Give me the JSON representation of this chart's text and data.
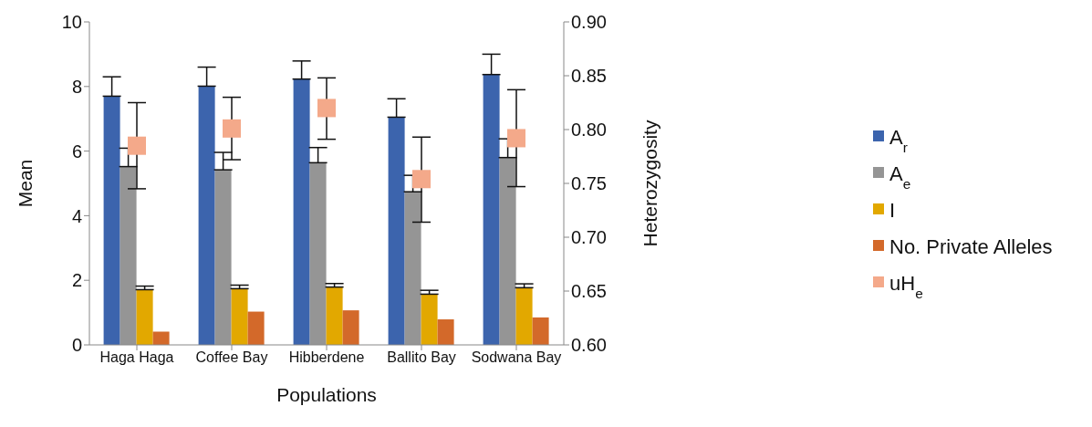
{
  "chart_data": {
    "type": "bar",
    "xlabel": "Populations",
    "ylabel": "Mean",
    "y2label": "Heterozygosity",
    "categories": [
      "Haga Haga",
      "Coffee Bay",
      "Hibberdene",
      "Ballito Bay",
      "Sodwana Bay"
    ],
    "series": [
      {
        "name": "A$_{r}$",
        "color": "#3c64ad",
        "values": [
          7.7,
          8.01,
          8.23,
          7.05,
          8.37
        ],
        "errors": [
          [
            7.7,
            8.3
          ],
          [
            8.01,
            8.6
          ],
          [
            8.23,
            8.79
          ],
          [
            7.05,
            7.62
          ],
          [
            8.37,
            9.0
          ]
        ]
      },
      {
        "name": "A$_{e}$",
        "color": "#959595",
        "values": [
          5.52,
          5.42,
          5.64,
          4.74,
          5.8
        ],
        "errors": [
          [
            5.52,
            6.09
          ],
          [
            5.42,
            5.96
          ],
          [
            5.64,
            6.11
          ],
          [
            4.74,
            5.25
          ],
          [
            5.8,
            6.38
          ]
        ]
      },
      {
        "name": "I",
        "color": "#e2a800",
        "values": [
          1.71,
          1.74,
          1.79,
          1.57,
          1.77
        ],
        "errors": [
          [
            1.71,
            1.82
          ],
          [
            1.74,
            1.85
          ],
          [
            1.79,
            1.9
          ],
          [
            1.57,
            1.69
          ],
          [
            1.77,
            1.89
          ]
        ]
      },
      {
        "name": "No. Private Alleles",
        "color": "#d3692a",
        "values": [
          0.41,
          1.03,
          1.07,
          0.79,
          0.85
        ]
      },
      {
        "name": "uH$_{e}$",
        "type": "scatter",
        "axis": "y2",
        "marker": "square",
        "color": "#f4a98a",
        "values": [
          0.785,
          0.801,
          0.82,
          0.754,
          0.792
        ],
        "errors": [
          [
            0.745,
            0.825
          ],
          [
            0.772,
            0.83
          ],
          [
            0.791,
            0.848
          ],
          [
            0.714,
            0.793
          ],
          [
            0.747,
            0.837
          ]
        ]
      }
    ],
    "ylim": [
      0,
      10
    ],
    "yticks": [
      0,
      2,
      4,
      6,
      8,
      10
    ],
    "y2lim": [
      0.6,
      0.9
    ],
    "y2ticks": [
      {
        "value": 0.6,
        "label": "0.60"
      },
      {
        "value": 0.65,
        "label": "0.65"
      },
      {
        "value": 0.7,
        "label": "0.70"
      },
      {
        "value": 0.75,
        "label": "0.75"
      },
      {
        "value": 0.8,
        "label": "0.80"
      },
      {
        "value": 0.85,
        "label": "0.85"
      },
      {
        "value": 0.9,
        "label": "0.90"
      }
    ],
    "grid": false,
    "legend": "right"
  }
}
